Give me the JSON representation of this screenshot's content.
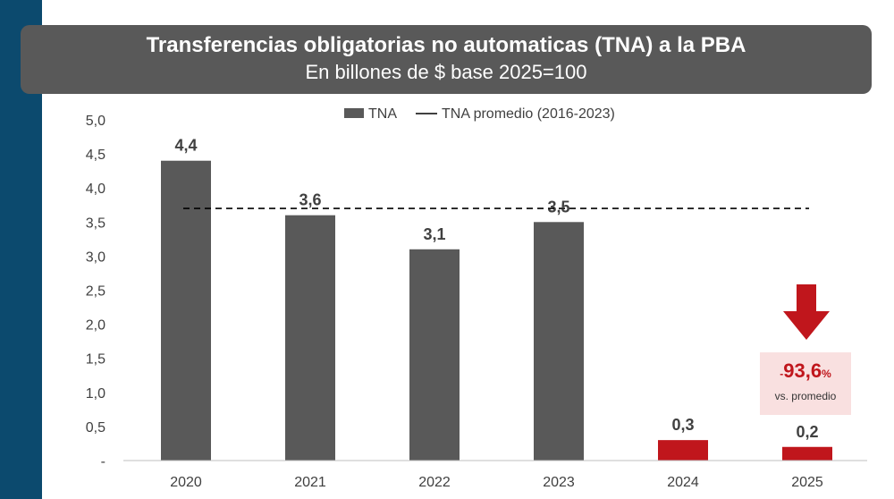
{
  "title": "Transferencias obligatorias no automaticas (TNA) a la PBA",
  "subtitle": "En billones de $ base 2025=100",
  "colors": {
    "bar": "#595959",
    "highlight": "#c0161c",
    "sidebar": "#0c4a6e",
    "callout_bg": "#f9e0e0"
  },
  "callout": {
    "prefix": "-",
    "value": "93,6",
    "unit": "%",
    "note": "vs. promedio",
    "icon": "arrow-down-icon"
  },
  "chart_data": {
    "type": "bar",
    "categories": [
      "2020",
      "2021",
      "2022",
      "2023",
      "2024",
      "2025"
    ],
    "series": [
      {
        "name": "TNA",
        "values": [
          4.4,
          3.6,
          3.1,
          3.5,
          0.3,
          0.2
        ],
        "labels": [
          "4,4",
          "3,6",
          "3,1",
          "3,5",
          "0,3",
          "0,2"
        ],
        "highlighted": [
          false,
          false,
          false,
          false,
          true,
          true
        ]
      }
    ],
    "reference_line": {
      "name": "TNA promedio (2016-2023)",
      "value": 3.7,
      "style": "dashed"
    },
    "ylim": [
      0,
      5
    ],
    "yticks": [
      {
        "value": 0,
        "label": "-"
      },
      {
        "value": 0.5,
        "label": "0,5"
      },
      {
        "value": 1,
        "label": "1,0"
      },
      {
        "value": 1.5,
        "label": "1,5"
      },
      {
        "value": 2,
        "label": "2,0"
      },
      {
        "value": 2.5,
        "label": "2,5"
      },
      {
        "value": 3,
        "label": "3,0"
      },
      {
        "value": 3.5,
        "label": "3,5"
      },
      {
        "value": 4,
        "label": "4,0"
      },
      {
        "value": 4.5,
        "label": "4,5"
      },
      {
        "value": 5,
        "label": "5,0"
      }
    ],
    "legend": {
      "position": "top"
    },
    "grid": false
  }
}
